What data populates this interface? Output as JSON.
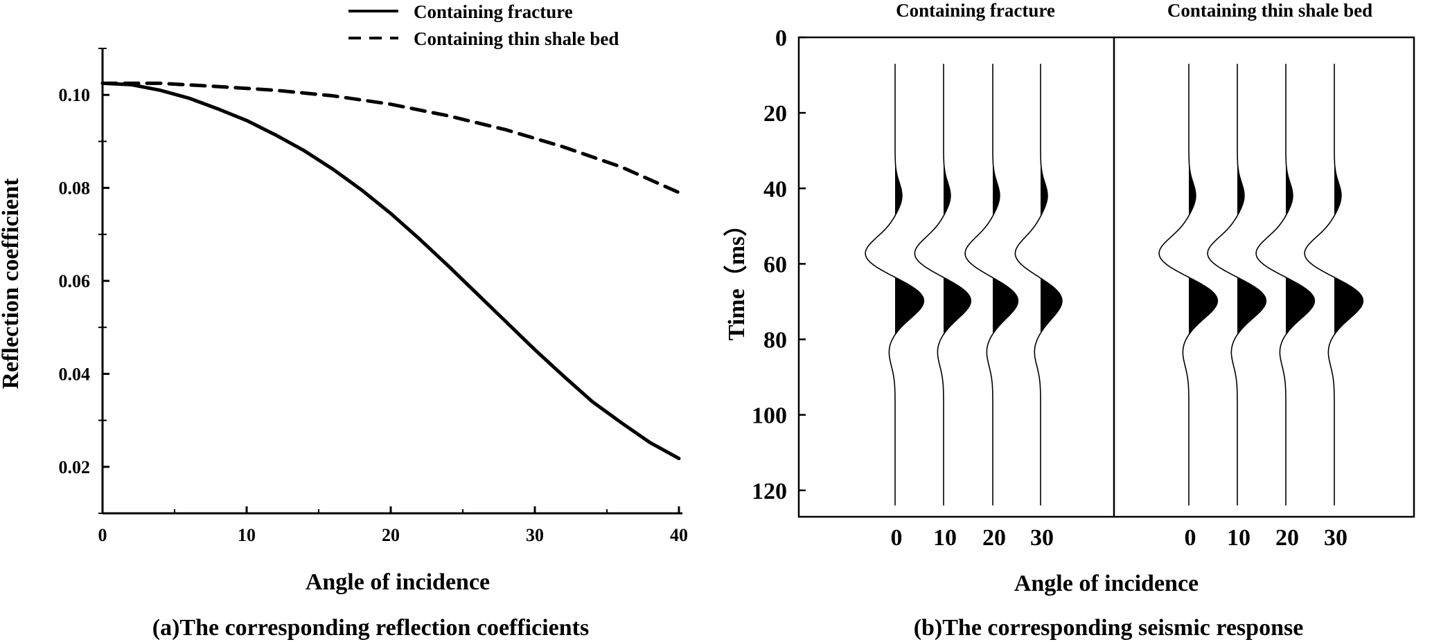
{
  "figure": {
    "caption_a": "(a)The corresponding reflection coefficients",
    "caption_b": "(b)The corresponding seismic response"
  },
  "chart_data": [
    {
      "type": "line",
      "xlabel": "Angle of incidence",
      "ylabel": "Reflection coefficient",
      "xlim": [
        0,
        40
      ],
      "ylim": [
        0.01,
        0.11
      ],
      "xticks": [
        0,
        10,
        20,
        30,
        40
      ],
      "xtick_labels": [
        "0",
        "10",
        "20",
        "30",
        "40"
      ],
      "yticks": [
        0.02,
        0.04,
        0.06,
        0.08,
        0.1
      ],
      "ytick_labels": [
        "0.02",
        "0.04",
        "0.06",
        "0.08",
        "0.10"
      ],
      "grid": false,
      "legend_position": "top-right",
      "series": [
        {
          "name": "Containing fracture",
          "style": "solid",
          "x": [
            0,
            2,
            4,
            6,
            8,
            10,
            12,
            14,
            16,
            18,
            20,
            22,
            24,
            26,
            28,
            30,
            32,
            34,
            36,
            38,
            40
          ],
          "y": [
            0.1025,
            0.1022,
            0.101,
            0.0993,
            0.097,
            0.0945,
            0.0914,
            0.088,
            0.084,
            0.0795,
            0.0745,
            0.069,
            0.0632,
            0.0572,
            0.0512,
            0.0452,
            0.0395,
            0.034,
            0.0295,
            0.0252,
            0.0218
          ]
        },
        {
          "name": "Containing thin shale bed",
          "style": "dashed",
          "x": [
            0,
            4,
            8,
            12,
            16,
            20,
            24,
            28,
            32,
            36,
            40
          ],
          "y": [
            0.1025,
            0.1025,
            0.1018,
            0.101,
            0.0998,
            0.098,
            0.0955,
            0.0925,
            0.0888,
            0.0845,
            0.079
          ]
        }
      ]
    },
    {
      "type": "wiggle",
      "ylabel": "Time（ms）",
      "xlabel": "Angle of incidence",
      "ylim": [
        0,
        127
      ],
      "yticks": [
        0,
        20,
        40,
        60,
        80,
        100,
        120
      ],
      "ytick_labels": [
        "0",
        "20",
        "40",
        "60",
        "80",
        "100",
        "120"
      ],
      "panels": [
        {
          "title": "Containing fracture",
          "angles": [
            "0",
            "10",
            "20",
            "30"
          ],
          "peak_scale": [
            1.0,
            0.95,
            0.88,
            0.75
          ],
          "trough_scale": [
            1.0,
            0.97,
            0.93,
            0.85
          ]
        },
        {
          "title": "Containing thin shale bed",
          "angles": [
            "0",
            "10",
            "20",
            "30"
          ],
          "peak_scale": [
            1.0,
            1.0,
            1.0,
            1.0
          ],
          "trough_scale": [
            1.0,
            1.0,
            1.0,
            1.0
          ]
        }
      ]
    }
  ]
}
